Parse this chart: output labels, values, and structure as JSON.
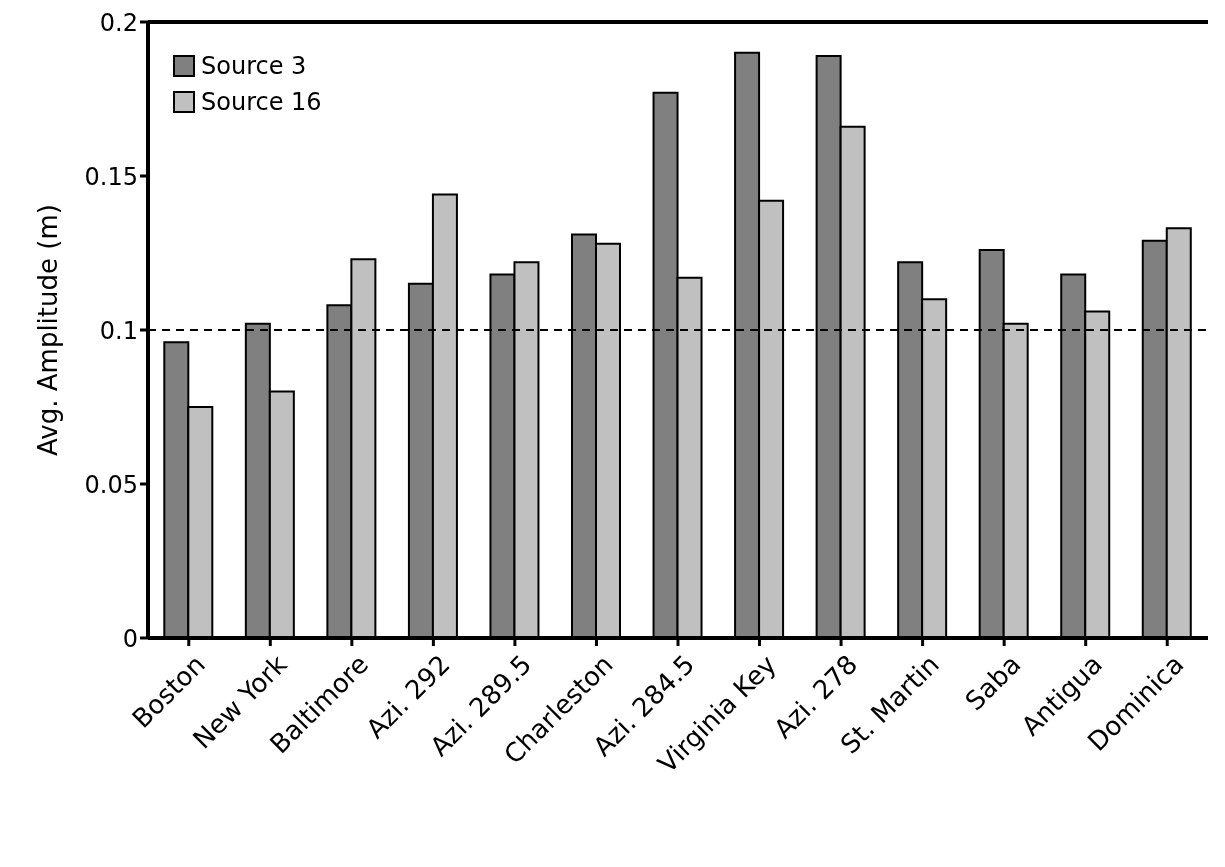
{
  "chart_data": {
    "type": "bar",
    "ylabel": "Avg. Amplitude (m)",
    "categories": [
      "Boston",
      "New York",
      "Baltimore",
      "Azi. 292",
      "Azi. 289.5",
      "Charleston",
      "Azi. 284.5",
      "Virginia Key",
      "Azi. 278",
      "St. Martin",
      "Saba",
      "Antigua",
      "Dominica"
    ],
    "series": [
      {
        "name": "Source 3",
        "color": "#808080",
        "values": [
          0.096,
          0.102,
          0.108,
          0.115,
          0.118,
          0.131,
          0.177,
          0.19,
          0.189,
          0.122,
          0.126,
          0.118,
          0.129
        ]
      },
      {
        "name": "Source 16",
        "color": "#c0c0c0",
        "values": [
          0.075,
          0.08,
          0.123,
          0.144,
          0.122,
          0.128,
          0.117,
          0.142,
          0.166,
          0.11,
          0.102,
          0.106,
          0.133
        ]
      }
    ],
    "ylim": [
      0,
      0.2
    ],
    "yticks": [
      0,
      0.05,
      0.1,
      0.15,
      0.2
    ],
    "grid": false,
    "legend": "top left",
    "ref_lines": [
      {
        "axis": "y",
        "value": 0.1,
        "line_style": "dashed",
        "color": "#000000"
      }
    ]
  }
}
